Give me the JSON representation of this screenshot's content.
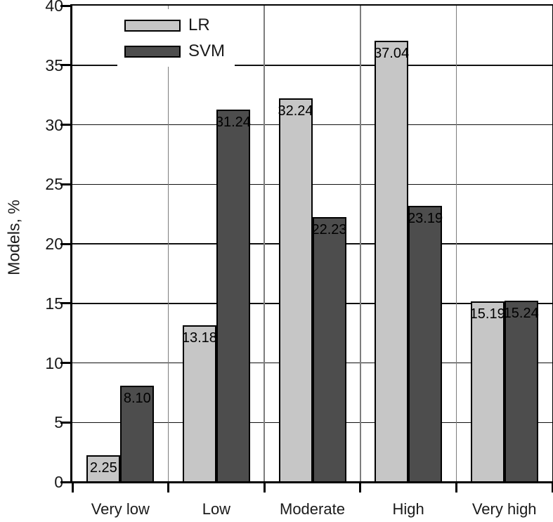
{
  "chart_data": {
    "type": "bar",
    "title": "",
    "ylabel": "Models, %",
    "xlabel": "",
    "categories": [
      "Very low",
      "Low",
      "Moderate",
      "High",
      "Very high"
    ],
    "series": [
      {
        "name": "LR",
        "color": "#c6c6c6",
        "values": [
          2.25,
          13.18,
          32.24,
          37.04,
          15.19
        ],
        "labels": [
          "2.25",
          "13.18",
          "32.24",
          "37.04",
          "15.19"
        ]
      },
      {
        "name": "SVM",
        "color": "#4d4d4d",
        "values": [
          8.1,
          31.24,
          22.23,
          23.19,
          15.24
        ],
        "labels": [
          "8.10",
          "31.24",
          "22.23",
          "23.19",
          "15.24"
        ]
      }
    ],
    "ylim": [
      0,
      40
    ],
    "yticks": [
      0,
      5,
      10,
      15,
      20,
      25,
      30,
      35,
      40
    ],
    "grid": true,
    "legend_position": "top-left",
    "bar_value_labels": true
  },
  "styles": {
    "background": "#ffffff",
    "axis_color": "#000000",
    "grid_h_color": "#111111",
    "grid_v_color": "#7d7d7d",
    "text_color": "#1a1a1a",
    "lr_color": "#c6c6c6",
    "svm_color": "#4d4d4d"
  }
}
